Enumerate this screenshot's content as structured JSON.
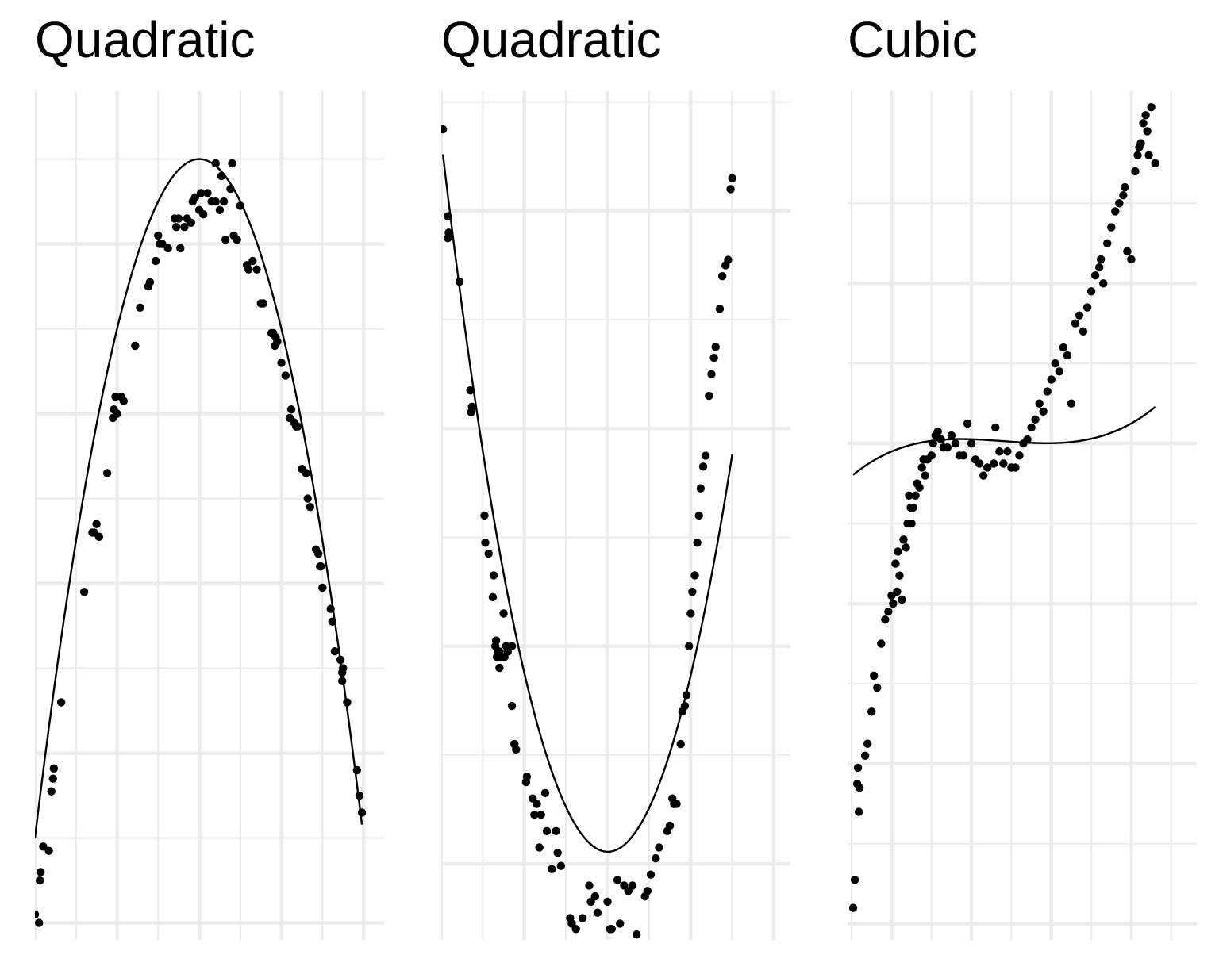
{
  "colors": {
    "grid": "#ebebeb",
    "points": "#000000",
    "line": "#000000",
    "background": "#ffffff"
  },
  "chart_data": [
    {
      "type": "scatter",
      "title": "Quadratic",
      "xlabel": "",
      "ylabel": "",
      "grid": true,
      "axis_ticks_shown": false,
      "xlim": [
        0,
        4.25
      ],
      "ylim": [
        -0.2,
        9.8
      ],
      "x_major_breaks": [
        0,
        1,
        2,
        3,
        4
      ],
      "y_major_breaks": [
        0,
        2,
        4,
        6,
        8
      ],
      "fit": {
        "kind": "quadratic",
        "coef": [
          1.0,
          8.0,
          -2.0
        ]
      },
      "points": [
        [
          0.0,
          0.1
        ],
        [
          0.05,
          0.0
        ],
        [
          0.06,
          0.5
        ],
        [
          0.07,
          0.6
        ],
        [
          0.1,
          0.9
        ],
        [
          0.17,
          0.85
        ],
        [
          0.2,
          1.55
        ],
        [
          0.22,
          1.7
        ],
        [
          0.23,
          1.82
        ],
        [
          0.32,
          2.6
        ],
        [
          0.6,
          3.9
        ],
        [
          0.7,
          4.6
        ],
        [
          0.72,
          4.6
        ],
        [
          0.75,
          4.7
        ],
        [
          0.78,
          4.55
        ],
        [
          0.88,
          5.3
        ],
        [
          0.95,
          5.95
        ],
        [
          0.96,
          6.05
        ],
        [
          0.98,
          6.2
        ],
        [
          1.0,
          6.0
        ],
        [
          1.05,
          6.2
        ],
        [
          1.08,
          6.15
        ],
        [
          1.22,
          6.8
        ],
        [
          1.28,
          7.25
        ],
        [
          1.38,
          7.5
        ],
        [
          1.4,
          7.55
        ],
        [
          1.47,
          7.8
        ],
        [
          1.5,
          8.1
        ],
        [
          1.52,
          8.0
        ],
        [
          1.55,
          8.0
        ],
        [
          1.62,
          7.95
        ],
        [
          1.7,
          8.3
        ],
        [
          1.72,
          8.2
        ],
        [
          1.75,
          8.3
        ],
        [
          1.77,
          7.95
        ],
        [
          1.82,
          8.2
        ],
        [
          1.85,
          8.3
        ],
        [
          1.9,
          8.25
        ],
        [
          1.92,
          8.5
        ],
        [
          1.95,
          8.55
        ],
        [
          2.0,
          8.4
        ],
        [
          2.02,
          8.6
        ],
        [
          2.05,
          8.35
        ],
        [
          2.1,
          8.6
        ],
        [
          2.15,
          8.5
        ],
        [
          2.2,
          8.5
        ],
        [
          2.2,
          8.95
        ],
        [
          2.25,
          8.4
        ],
        [
          2.27,
          8.8
        ],
        [
          2.3,
          8.5
        ],
        [
          2.32,
          8.05
        ],
        [
          2.38,
          8.65
        ],
        [
          2.4,
          8.95
        ],
        [
          2.42,
          8.1
        ],
        [
          2.46,
          8.05
        ],
        [
          2.5,
          8.45
        ],
        [
          2.58,
          7.75
        ],
        [
          2.6,
          7.7
        ],
        [
          2.65,
          7.8
        ],
        [
          2.7,
          7.7
        ],
        [
          2.75,
          7.3
        ],
        [
          2.78,
          7.3
        ],
        [
          2.88,
          6.95
        ],
        [
          2.9,
          6.95
        ],
        [
          2.92,
          6.8
        ],
        [
          2.93,
          6.9
        ],
        [
          2.95,
          6.85
        ],
        [
          3.0,
          6.6
        ],
        [
          3.05,
          6.45
        ],
        [
          3.1,
          5.95
        ],
        [
          3.12,
          6.05
        ],
        [
          3.15,
          5.9
        ],
        [
          3.18,
          5.85
        ],
        [
          3.2,
          5.85
        ],
        [
          3.25,
          5.35
        ],
        [
          3.3,
          5.3
        ],
        [
          3.32,
          5.0
        ],
        [
          3.35,
          4.9
        ],
        [
          3.42,
          4.4
        ],
        [
          3.45,
          4.35
        ],
        [
          3.47,
          4.2
        ],
        [
          3.48,
          4.2
        ],
        [
          3.5,
          3.95
        ],
        [
          3.6,
          3.7
        ],
        [
          3.62,
          3.55
        ],
        [
          3.65,
          3.2
        ],
        [
          3.72,
          3.1
        ],
        [
          3.74,
          2.95
        ],
        [
          3.74,
          2.85
        ],
        [
          3.75,
          3.0
        ],
        [
          3.8,
          2.6
        ],
        [
          3.92,
          1.8
        ],
        [
          3.95,
          1.5
        ],
        [
          3.98,
          1.3
        ]
      ]
    },
    {
      "type": "scatter",
      "title": "Quadratic",
      "xlabel": "",
      "ylabel": "",
      "grid": true,
      "axis_ticks_shown": false,
      "xlim": [
        0,
        4.2
      ],
      "ylim": [
        -0.7,
        7.1
      ],
      "x_major_breaks": [
        0,
        1,
        2,
        3,
        4
      ],
      "y_major_breaks": [
        0,
        2,
        4,
        6
      ],
      "fit": {
        "kind": "quadratic",
        "coef": [
          6.65,
          -6.53,
          1.63
        ]
      },
      "points": [
        [
          0.02,
          6.75
        ],
        [
          0.08,
          5.95
        ],
        [
          0.08,
          5.75
        ],
        [
          0.09,
          5.8
        ],
        [
          0.22,
          5.35
        ],
        [
          0.35,
          4.35
        ],
        [
          0.36,
          4.15
        ],
        [
          0.37,
          4.2
        ],
        [
          0.52,
          3.2
        ],
        [
          0.53,
          2.95
        ],
        [
          0.57,
          2.85
        ],
        [
          0.62,
          2.45
        ],
        [
          0.63,
          2.65
        ],
        [
          0.65,
          2.0
        ],
        [
          0.66,
          2.05
        ],
        [
          0.67,
          1.9
        ],
        [
          0.68,
          1.95
        ],
        [
          0.7,
          1.8
        ],
        [
          0.7,
          1.95
        ],
        [
          0.72,
          1.9
        ],
        [
          0.75,
          2.3
        ],
        [
          0.76,
          1.9
        ],
        [
          0.78,
          2.0
        ],
        [
          0.8,
          1.95
        ],
        [
          0.85,
          2.0
        ],
        [
          0.85,
          1.45
        ],
        [
          0.88,
          1.1
        ],
        [
          0.9,
          1.05
        ],
        [
          1.02,
          0.75
        ],
        [
          1.03,
          0.8
        ],
        [
          1.1,
          0.6
        ],
        [
          1.12,
          0.45
        ],
        [
          1.15,
          0.55
        ],
        [
          1.18,
          0.15
        ],
        [
          1.2,
          0.45
        ],
        [
          1.25,
          0.65
        ],
        [
          1.27,
          0.3
        ],
        [
          1.33,
          -0.05
        ],
        [
          1.38,
          0.3
        ],
        [
          1.4,
          0.1
        ],
        [
          1.44,
          -0.02
        ],
        [
          1.55,
          -0.5
        ],
        [
          1.57,
          -0.55
        ],
        [
          1.6,
          -0.8
        ],
        [
          1.62,
          -0.6
        ],
        [
          1.65,
          -1.0
        ],
        [
          1.7,
          -0.5
        ],
        [
          1.72,
          -0.75
        ],
        [
          1.78,
          -0.2
        ],
        [
          1.8,
          -0.35
        ],
        [
          1.83,
          -0.8
        ],
        [
          1.85,
          -0.3
        ],
        [
          1.88,
          -0.45
        ],
        [
          2.0,
          -0.35
        ],
        [
          2.03,
          -0.6
        ],
        [
          2.05,
          -0.6
        ],
        [
          2.12,
          -0.15
        ],
        [
          2.15,
          -0.55
        ],
        [
          2.2,
          -0.2
        ],
        [
          2.25,
          -0.25
        ],
        [
          2.3,
          -0.2
        ],
        [
          2.35,
          -0.65
        ],
        [
          2.45,
          -0.3
        ],
        [
          2.48,
          -0.25
        ],
        [
          2.52,
          -0.1
        ],
        [
          2.58,
          0.05
        ],
        [
          2.62,
          0.15
        ],
        [
          2.72,
          0.3
        ],
        [
          2.75,
          0.35
        ],
        [
          2.78,
          0.6
        ],
        [
          2.8,
          0.55
        ],
        [
          2.83,
          0.55
        ],
        [
          2.88,
          1.1
        ],
        [
          2.9,
          1.4
        ],
        [
          2.93,
          1.45
        ],
        [
          2.95,
          1.55
        ],
        [
          2.98,
          2.0
        ],
        [
          3.0,
          2.3
        ],
        [
          3.02,
          2.5
        ],
        [
          3.05,
          2.65
        ],
        [
          3.08,
          2.95
        ],
        [
          3.1,
          3.2
        ],
        [
          3.12,
          3.45
        ],
        [
          3.15,
          3.65
        ],
        [
          3.18,
          3.75
        ],
        [
          3.22,
          4.3
        ],
        [
          3.25,
          4.5
        ],
        [
          3.28,
          4.65
        ],
        [
          3.3,
          4.75
        ],
        [
          3.35,
          5.1
        ],
        [
          3.38,
          5.4
        ],
        [
          3.42,
          5.5
        ],
        [
          3.45,
          5.55
        ],
        [
          3.48,
          6.2
        ],
        [
          3.5,
          6.3
        ]
      ]
    },
    {
      "type": "scatter",
      "title": "Cubic",
      "xlabel": "",
      "ylabel": "",
      "grid": true,
      "axis_ticks_shown": false,
      "xlim": [
        -0.55,
        3.82
      ],
      "ylim": [
        -0.2,
        10.4
      ],
      "x_major_breaks": [
        0,
        1,
        2,
        3
      ],
      "y_major_breaks": [
        0,
        2,
        4,
        6,
        8
      ],
      "fit": {
        "kind": "cubic",
        "coef": [
          5.9,
          0.42,
          -0.35,
          0.083
        ]
      },
      "points": [
        [
          -0.48,
          0.2
        ],
        [
          -0.46,
          0.55
        ],
        [
          -0.43,
          1.75
        ],
        [
          -0.42,
          1.95
        ],
        [
          -0.41,
          1.4
        ],
        [
          -0.4,
          1.7
        ],
        [
          -0.33,
          2.1
        ],
        [
          -0.3,
          2.25
        ],
        [
          -0.25,
          2.65
        ],
        [
          -0.22,
          3.1
        ],
        [
          -0.18,
          2.95
        ],
        [
          -0.13,
          3.5
        ],
        [
          -0.08,
          3.8
        ],
        [
          -0.04,
          3.9
        ],
        [
          0.0,
          4.1
        ],
        [
          0.02,
          4.0
        ],
        [
          0.05,
          4.5
        ],
        [
          0.07,
          4.15
        ],
        [
          0.08,
          4.65
        ],
        [
          0.1,
          4.35
        ],
        [
          0.13,
          4.05
        ],
        [
          0.15,
          4.8
        ],
        [
          0.18,
          4.7
        ],
        [
          0.2,
          5.0
        ],
        [
          0.22,
          5.35
        ],
        [
          0.24,
          5.2
        ],
        [
          0.25,
          5.0
        ],
        [
          0.27,
          5.2
        ],
        [
          0.3,
          5.35
        ],
        [
          0.32,
          5.5
        ],
        [
          0.35,
          5.45
        ],
        [
          0.38,
          5.7
        ],
        [
          0.4,
          5.8
        ],
        [
          0.42,
          5.6
        ],
        [
          0.45,
          5.8
        ],
        [
          0.5,
          5.85
        ],
        [
          0.52,
          6.0
        ],
        [
          0.55,
          6.1
        ],
        [
          0.58,
          6.15
        ],
        [
          0.62,
          6.05
        ],
        [
          0.65,
          5.95
        ],
        [
          0.7,
          5.95
        ],
        [
          0.75,
          6.1
        ],
        [
          0.8,
          6.0
        ],
        [
          0.85,
          5.85
        ],
        [
          0.9,
          5.85
        ],
        [
          0.95,
          6.25
        ],
        [
          1.0,
          6.0
        ],
        [
          1.05,
          5.8
        ],
        [
          1.1,
          5.75
        ],
        [
          1.15,
          5.6
        ],
        [
          1.2,
          5.7
        ],
        [
          1.28,
          5.75
        ],
        [
          1.3,
          6.2
        ],
        [
          1.35,
          5.9
        ],
        [
          1.4,
          5.75
        ],
        [
          1.45,
          5.9
        ],
        [
          1.5,
          5.7
        ],
        [
          1.55,
          5.7
        ],
        [
          1.6,
          5.85
        ],
        [
          1.65,
          6.0
        ],
        [
          1.7,
          6.05
        ],
        [
          1.75,
          6.2
        ],
        [
          1.8,
          6.3
        ],
        [
          1.85,
          6.5
        ],
        [
          1.9,
          6.4
        ],
        [
          1.95,
          6.65
        ],
        [
          2.0,
          6.8
        ],
        [
          2.05,
          7.0
        ],
        [
          2.1,
          6.9
        ],
        [
          2.15,
          7.2
        ],
        [
          2.2,
          7.1
        ],
        [
          2.25,
          6.5
        ],
        [
          2.3,
          7.5
        ],
        [
          2.35,
          7.6
        ],
        [
          2.4,
          7.4
        ],
        [
          2.45,
          7.7
        ],
        [
          2.5,
          7.9
        ],
        [
          2.55,
          8.1
        ],
        [
          2.6,
          8.2
        ],
        [
          2.62,
          8.3
        ],
        [
          2.65,
          8.0
        ],
        [
          2.7,
          8.5
        ],
        [
          2.75,
          8.7
        ],
        [
          2.8,
          8.9
        ],
        [
          2.85,
          9.0
        ],
        [
          2.9,
          9.1
        ],
        [
          2.92,
          9.2
        ],
        [
          2.95,
          8.4
        ],
        [
          3.0,
          8.3
        ],
        [
          3.05,
          9.4
        ],
        [
          3.08,
          9.6
        ],
        [
          3.1,
          9.7
        ],
        [
          3.12,
          9.75
        ],
        [
          3.15,
          10.0
        ],
        [
          3.18,
          10.1
        ],
        [
          3.2,
          9.9
        ],
        [
          3.22,
          9.6
        ],
        [
          3.25,
          10.2
        ],
        [
          3.3,
          9.5
        ]
      ]
    }
  ]
}
